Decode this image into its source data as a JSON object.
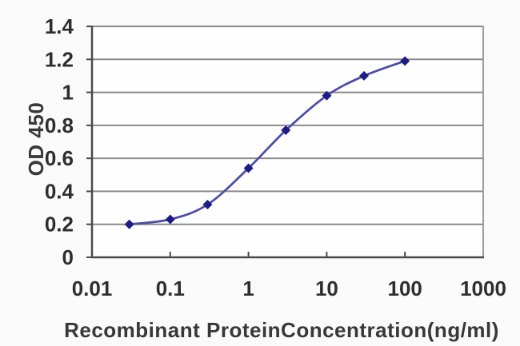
{
  "chart_data": {
    "type": "line",
    "title": "",
    "xlabel": "Recombinant ProteinConcentration(ng/ml)",
    "ylabel": "OD 450",
    "x_scale": "log",
    "xlim": [
      0.01,
      1000
    ],
    "ylim": [
      0,
      1.4
    ],
    "grid": true,
    "legend": "none",
    "smoothed_line": true,
    "marker_shape": "diamond",
    "line_color": "#4d4da8",
    "marker_color": "#1d1d85",
    "series": [
      {
        "name": "OD 450",
        "x": [
          0.03,
          0.1,
          0.3,
          1,
          3,
          10,
          30,
          100
        ],
        "y": [
          0.2,
          0.23,
          0.32,
          0.54,
          0.77,
          0.98,
          1.1,
          1.19
        ]
      }
    ],
    "x_ticks": [
      {
        "label": "0.01",
        "value": 0.01
      },
      {
        "label": "0.1",
        "value": 0.1
      },
      {
        "label": "1",
        "value": 1
      },
      {
        "label": "10",
        "value": 10
      },
      {
        "label": "100",
        "value": 100
      },
      {
        "label": "1000",
        "value": 1000
      }
    ],
    "y_ticks": [
      {
        "label": "0",
        "value": 0
      },
      {
        "label": "0.2",
        "value": 0.2
      },
      {
        "label": "0.4",
        "value": 0.4
      },
      {
        "label": "0.6",
        "value": 0.6
      },
      {
        "label": "0.8",
        "value": 0.8
      },
      {
        "label": "1",
        "value": 1
      },
      {
        "label": "1.2",
        "value": 1.2
      },
      {
        "label": "1.4",
        "value": 1.4
      }
    ]
  },
  "colors": {
    "background": "#fafafa",
    "plot_background": "#fefefe",
    "gridline": "#8a8a8a",
    "axis": "#4a4a4a",
    "right_border": "#9c9c9c",
    "text": "#2e2e2e"
  }
}
